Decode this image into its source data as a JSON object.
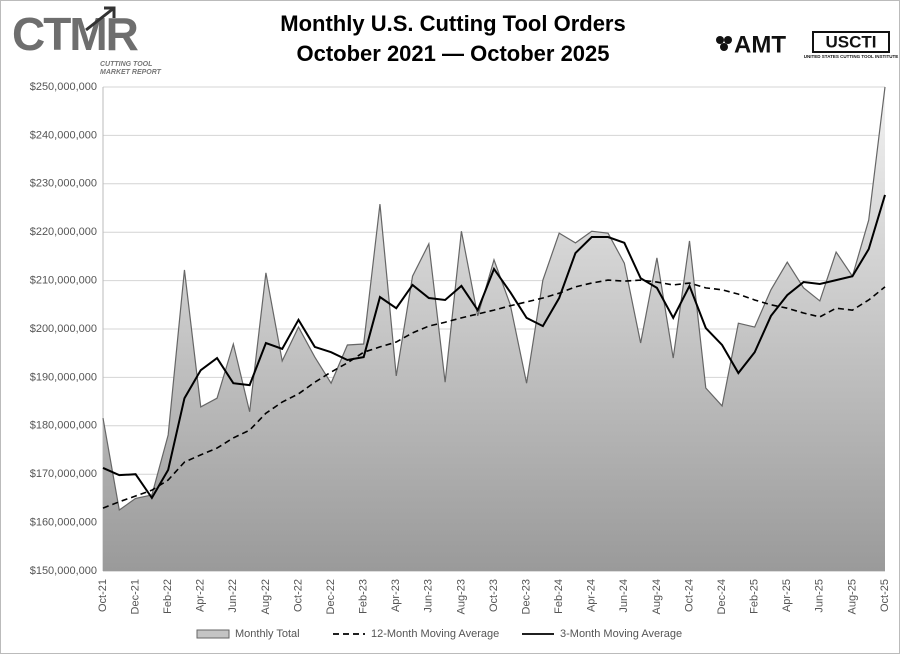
{
  "chart_data": {
    "type": "area-line",
    "title": "Monthly U.S. Cutting Tool Orders",
    "subtitle": "October 2021 — October 2025",
    "logos": {
      "ctmr": "CTMR",
      "ctmr_tagline": [
        "CUTTING TOOL",
        "MARKET REPORT"
      ],
      "amt": "AMT",
      "uscti": "USCTI",
      "uscti_tagline": "UNITED STATES CUTTING TOOL INSTITUTE"
    },
    "categories": [
      "Oct-21",
      null,
      "Dec-21",
      null,
      "Feb-22",
      null,
      "Apr-22",
      null,
      "Jun-22",
      null,
      "Aug-22",
      null,
      "Oct-22",
      null,
      "Dec-22",
      null,
      "Feb-23",
      null,
      "Apr-23",
      null,
      "Jun-23",
      null,
      "Aug-23",
      null,
      "Oct-23",
      null,
      "Dec-23",
      null,
      "Feb-24",
      null,
      "Apr-24",
      null,
      "Jun-24",
      null,
      "Aug-24",
      null,
      "Oct-24",
      null,
      "Dec-24",
      null,
      "Feb-25",
      null,
      "Apr-25",
      null,
      "Jun-25",
      null,
      "Aug-25",
      null,
      "Oct-25"
    ],
    "series": [
      {
        "name": "Monthly Total",
        "kind": "area",
        "color": "#c4c4c4",
        "values": [
          181600000,
          162600000,
          165000000,
          165700000,
          178100000,
          212200000,
          183900000,
          185700000,
          196900000,
          182900000,
          211600000,
          193400000,
          200400000,
          194200000,
          188800000,
          196700000,
          196900000,
          225800000,
          190300000,
          210900000,
          217600000,
          189000000,
          220200000,
          202700000,
          214300000,
          205000000,
          188800000,
          210100000,
          219800000,
          217800000,
          220200000,
          219800000,
          213600000,
          197100000,
          214700000,
          194000000,
          218200000,
          187800000,
          184100000,
          201200000,
          200400000,
          208100000,
          213800000,
          208500000,
          205800000,
          215900000,
          210900000,
          222500000,
          250000000
        ]
      },
      {
        "name": "12-Month Moving Average",
        "kind": "dashed",
        "color": "#000000",
        "values": [
          163000000,
          164300000,
          165500000,
          166700000,
          168800000,
          172500000,
          174000000,
          175400000,
          177500000,
          179100000,
          182600000,
          184900000,
          186600000,
          189000000,
          191100000,
          193000000,
          195200000,
          196300000,
          197300000,
          199200000,
          200600000,
          201400000,
          202300000,
          203100000,
          203900000,
          204800000,
          205600000,
          206400000,
          207400000,
          208700000,
          209500000,
          210100000,
          209900000,
          210100000,
          209700000,
          209100000,
          209500000,
          208500000,
          208100000,
          207200000,
          206000000,
          205000000,
          204300000,
          203300000,
          202500000,
          204300000,
          203900000,
          206000000,
          208700000
        ]
      },
      {
        "name": "3-Month Moving Average",
        "kind": "solid",
        "color": "#000000",
        "values": [
          171300000,
          169800000,
          170000000,
          165100000,
          170900000,
          185700000,
          191500000,
          194000000,
          188800000,
          188400000,
          197100000,
          195900000,
          201900000,
          196300000,
          195200000,
          193600000,
          194200000,
          206600000,
          204300000,
          209100000,
          206400000,
          206000000,
          208900000,
          203900000,
          212400000,
          207600000,
          202300000,
          200600000,
          206400000,
          215700000,
          219000000,
          219000000,
          217800000,
          210500000,
          208500000,
          202300000,
          208900000,
          200200000,
          196700000,
          190900000,
          195200000,
          202700000,
          207000000,
          209700000,
          209300000,
          210100000,
          210900000,
          216500000,
          227700000
        ]
      }
    ],
    "ylim": [
      150000000,
      250000000
    ],
    "yticks": [
      {
        "value": 150000000,
        "label": "$150,000,000"
      },
      {
        "value": 160000000,
        "label": "$160,000,000"
      },
      {
        "value": 170000000,
        "label": "$170,000,000"
      },
      {
        "value": 180000000,
        "label": "$180,000,000"
      },
      {
        "value": 190000000,
        "label": "$190,000,000"
      },
      {
        "value": 200000000,
        "label": "$200,000,000"
      },
      {
        "value": 210000000,
        "label": "$210,000,000"
      },
      {
        "value": 220000000,
        "label": "$220,000,000"
      },
      {
        "value": 230000000,
        "label": "$230,000,000"
      },
      {
        "value": 240000000,
        "label": "$240,000,000"
      },
      {
        "value": 250000000,
        "label": "$250,000,000"
      }
    ],
    "grid": true,
    "legend": "bottom"
  }
}
